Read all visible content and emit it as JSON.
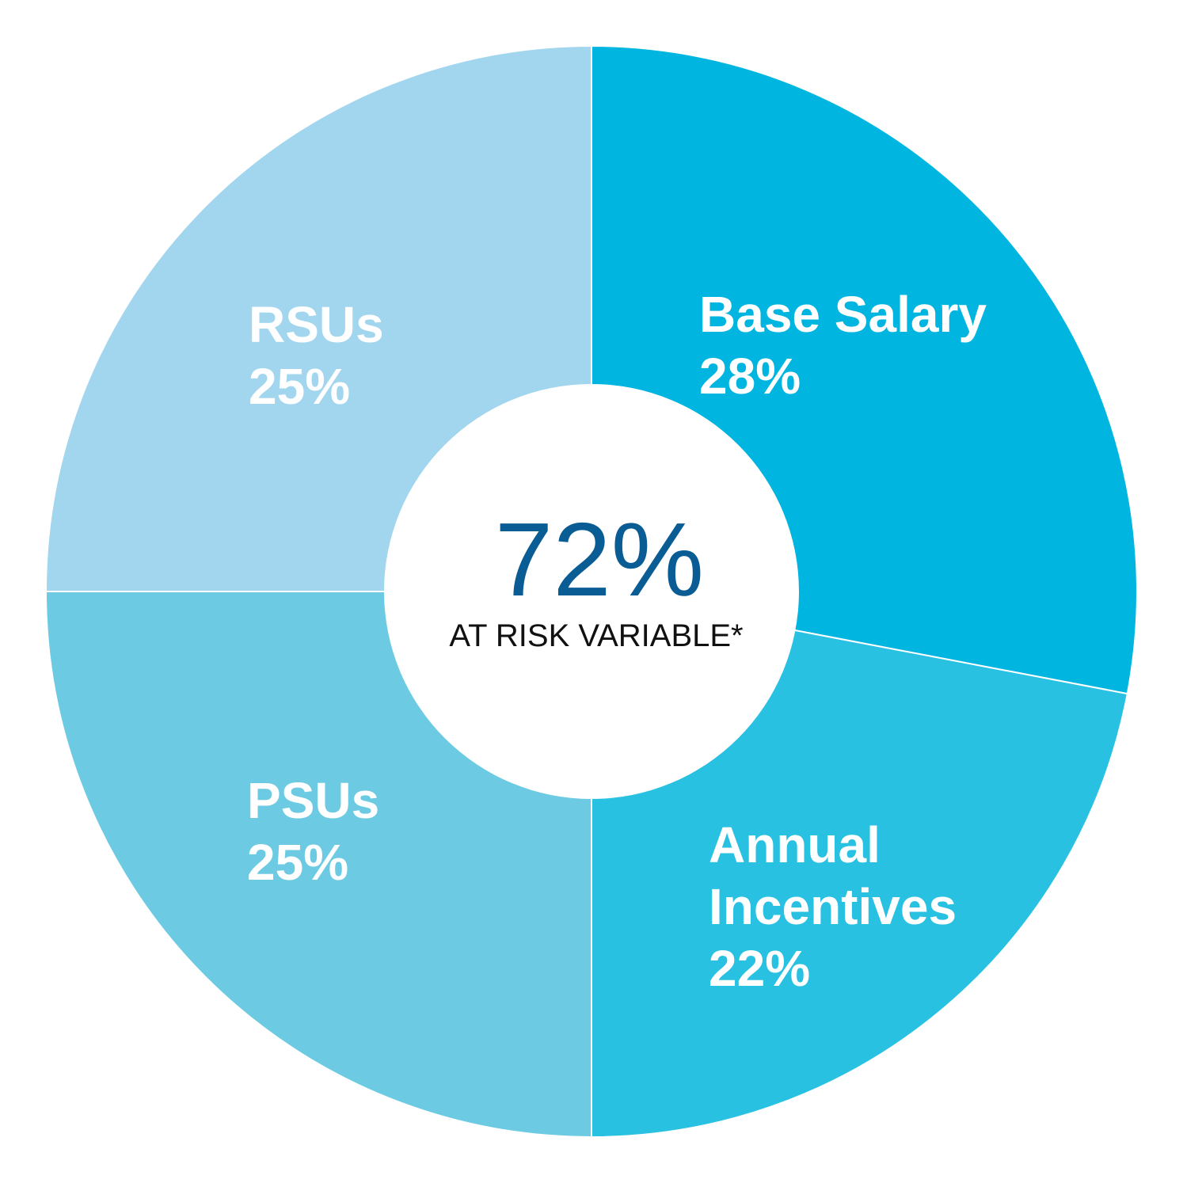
{
  "chart_data": {
    "type": "pie",
    "title": "",
    "categories": [
      "Base Salary",
      "Annual Incentives",
      "PSUs",
      "RSUs"
    ],
    "values": [
      28,
      22,
      25,
      25
    ],
    "value_labels": [
      "28%",
      "22%",
      "25%",
      "25%"
    ],
    "label_lines": [
      [
        "Base Salary"
      ],
      [
        "Annual",
        "Incentives"
      ],
      [
        "PSUs"
      ],
      [
        "RSUs"
      ]
    ],
    "colors": [
      "#00b5e0",
      "#29c1e2",
      "#6ccbe3",
      "#a2d6ef"
    ],
    "center": {
      "value": "72%",
      "caption": "AT RISK VARIABLE*"
    }
  }
}
